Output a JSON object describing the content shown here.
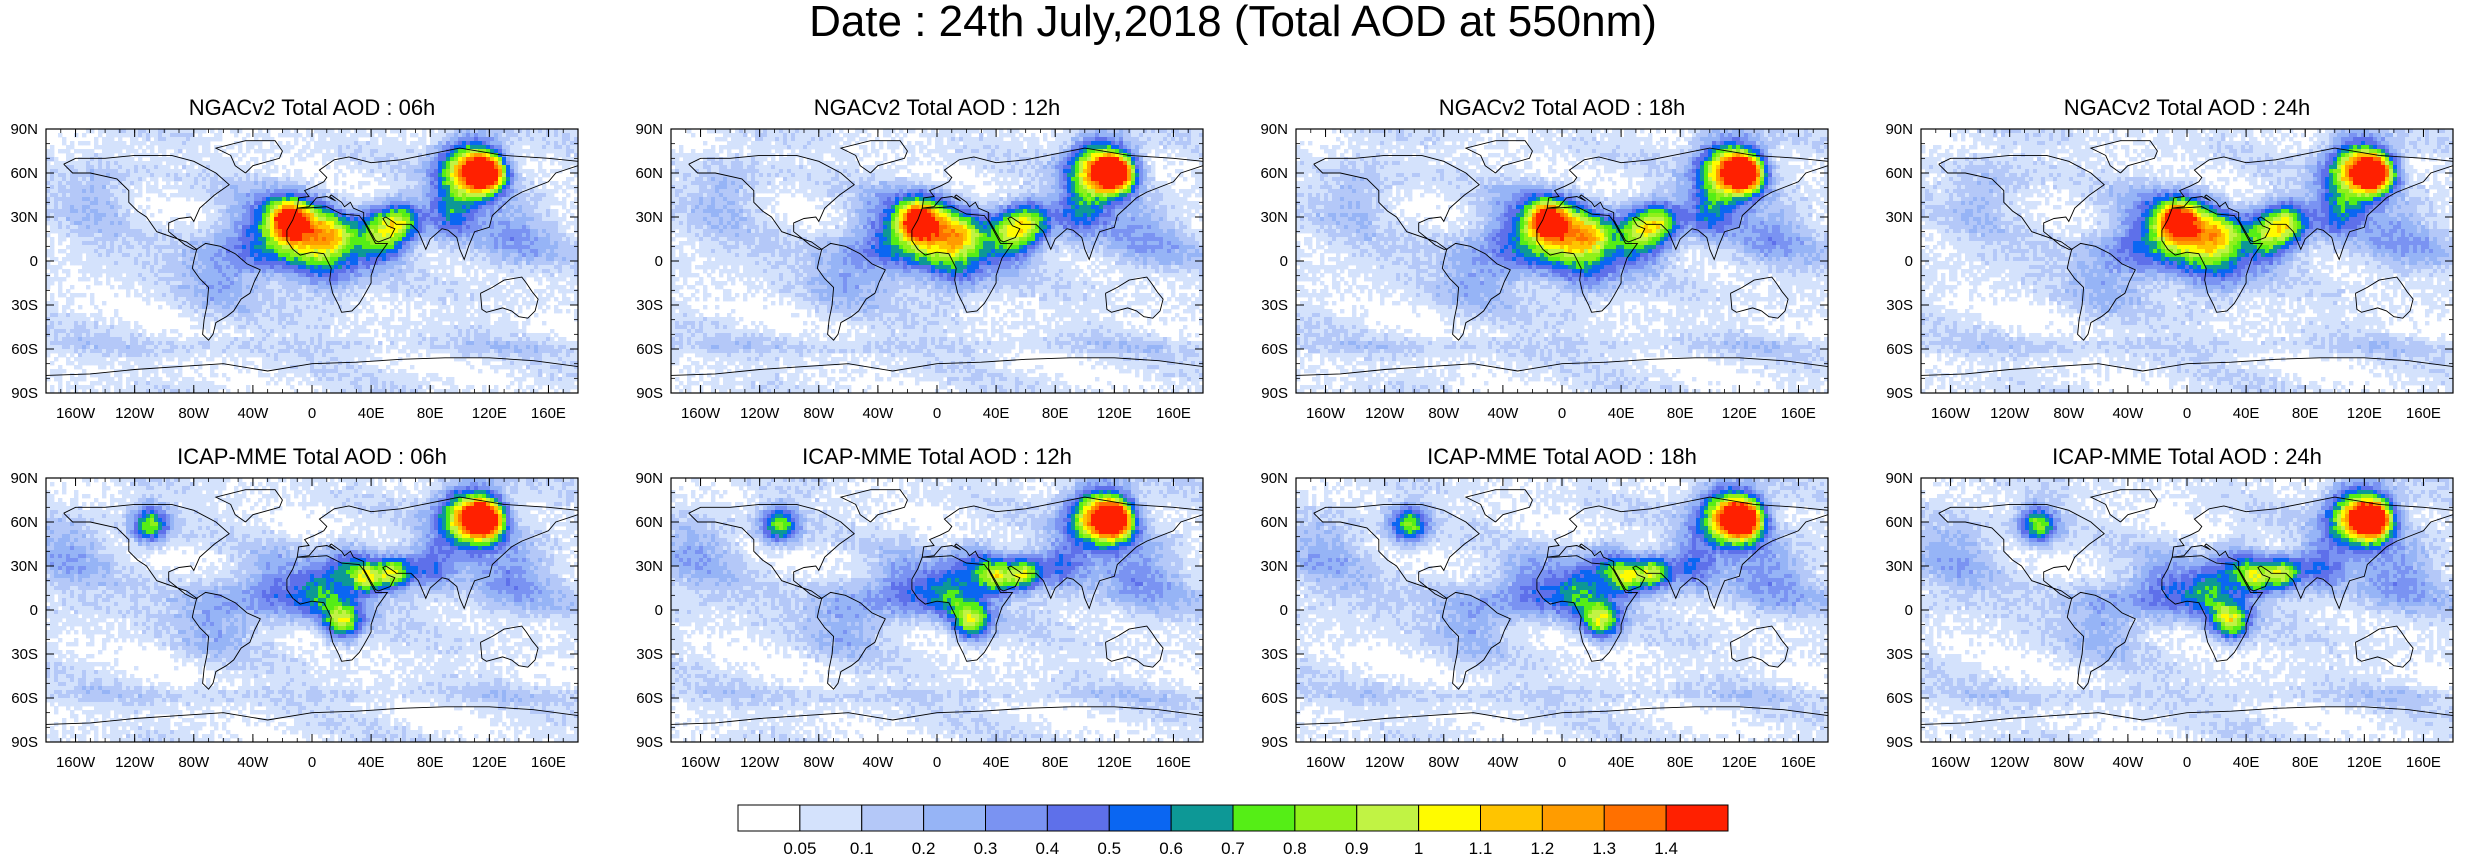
{
  "figure": {
    "title": "Date : 24th July,2018 (Total AOD at 550nm)"
  },
  "panels": [
    {
      "title": "NGACv2 Total AOD : 06h"
    },
    {
      "title": "NGACv2 Total AOD : 12h"
    },
    {
      "title": "NGACv2 Total AOD : 18h"
    },
    {
      "title": "NGACv2 Total AOD : 24h"
    },
    {
      "title": "ICAP-MME Total AOD : 06h"
    },
    {
      "title": "ICAP-MME Total AOD : 12h"
    },
    {
      "title": "ICAP-MME Total AOD : 18h"
    },
    {
      "title": "ICAP-MME Total AOD : 24h"
    }
  ],
  "axes": {
    "lat_ticks": [
      "90N",
      "60N",
      "30N",
      "0",
      "30S",
      "60S",
      "90S"
    ],
    "lon_ticks": [
      "160W",
      "120W",
      "80W",
      "40W",
      "0",
      "40E",
      "80E",
      "120E",
      "160E"
    ]
  },
  "colorbar": {
    "colors": [
      "#ffffff",
      "#d4e2fc",
      "#b4c8f8",
      "#96b4f6",
      "#7a93f2",
      "#5e70ea",
      "#0a66f2",
      "#0d9896",
      "#55ee16",
      "#90f01a",
      "#c1f344",
      "#fffb00",
      "#ffc400",
      "#ff9c00",
      "#ff7000",
      "#ff2000"
    ],
    "labels": [
      "0.05",
      "0.1",
      "0.2",
      "0.3",
      "0.4",
      "0.5",
      "0.6",
      "0.7",
      "0.8",
      "0.9",
      "1",
      "1.1",
      "1.2",
      "1.3",
      "1.4"
    ]
  }
}
